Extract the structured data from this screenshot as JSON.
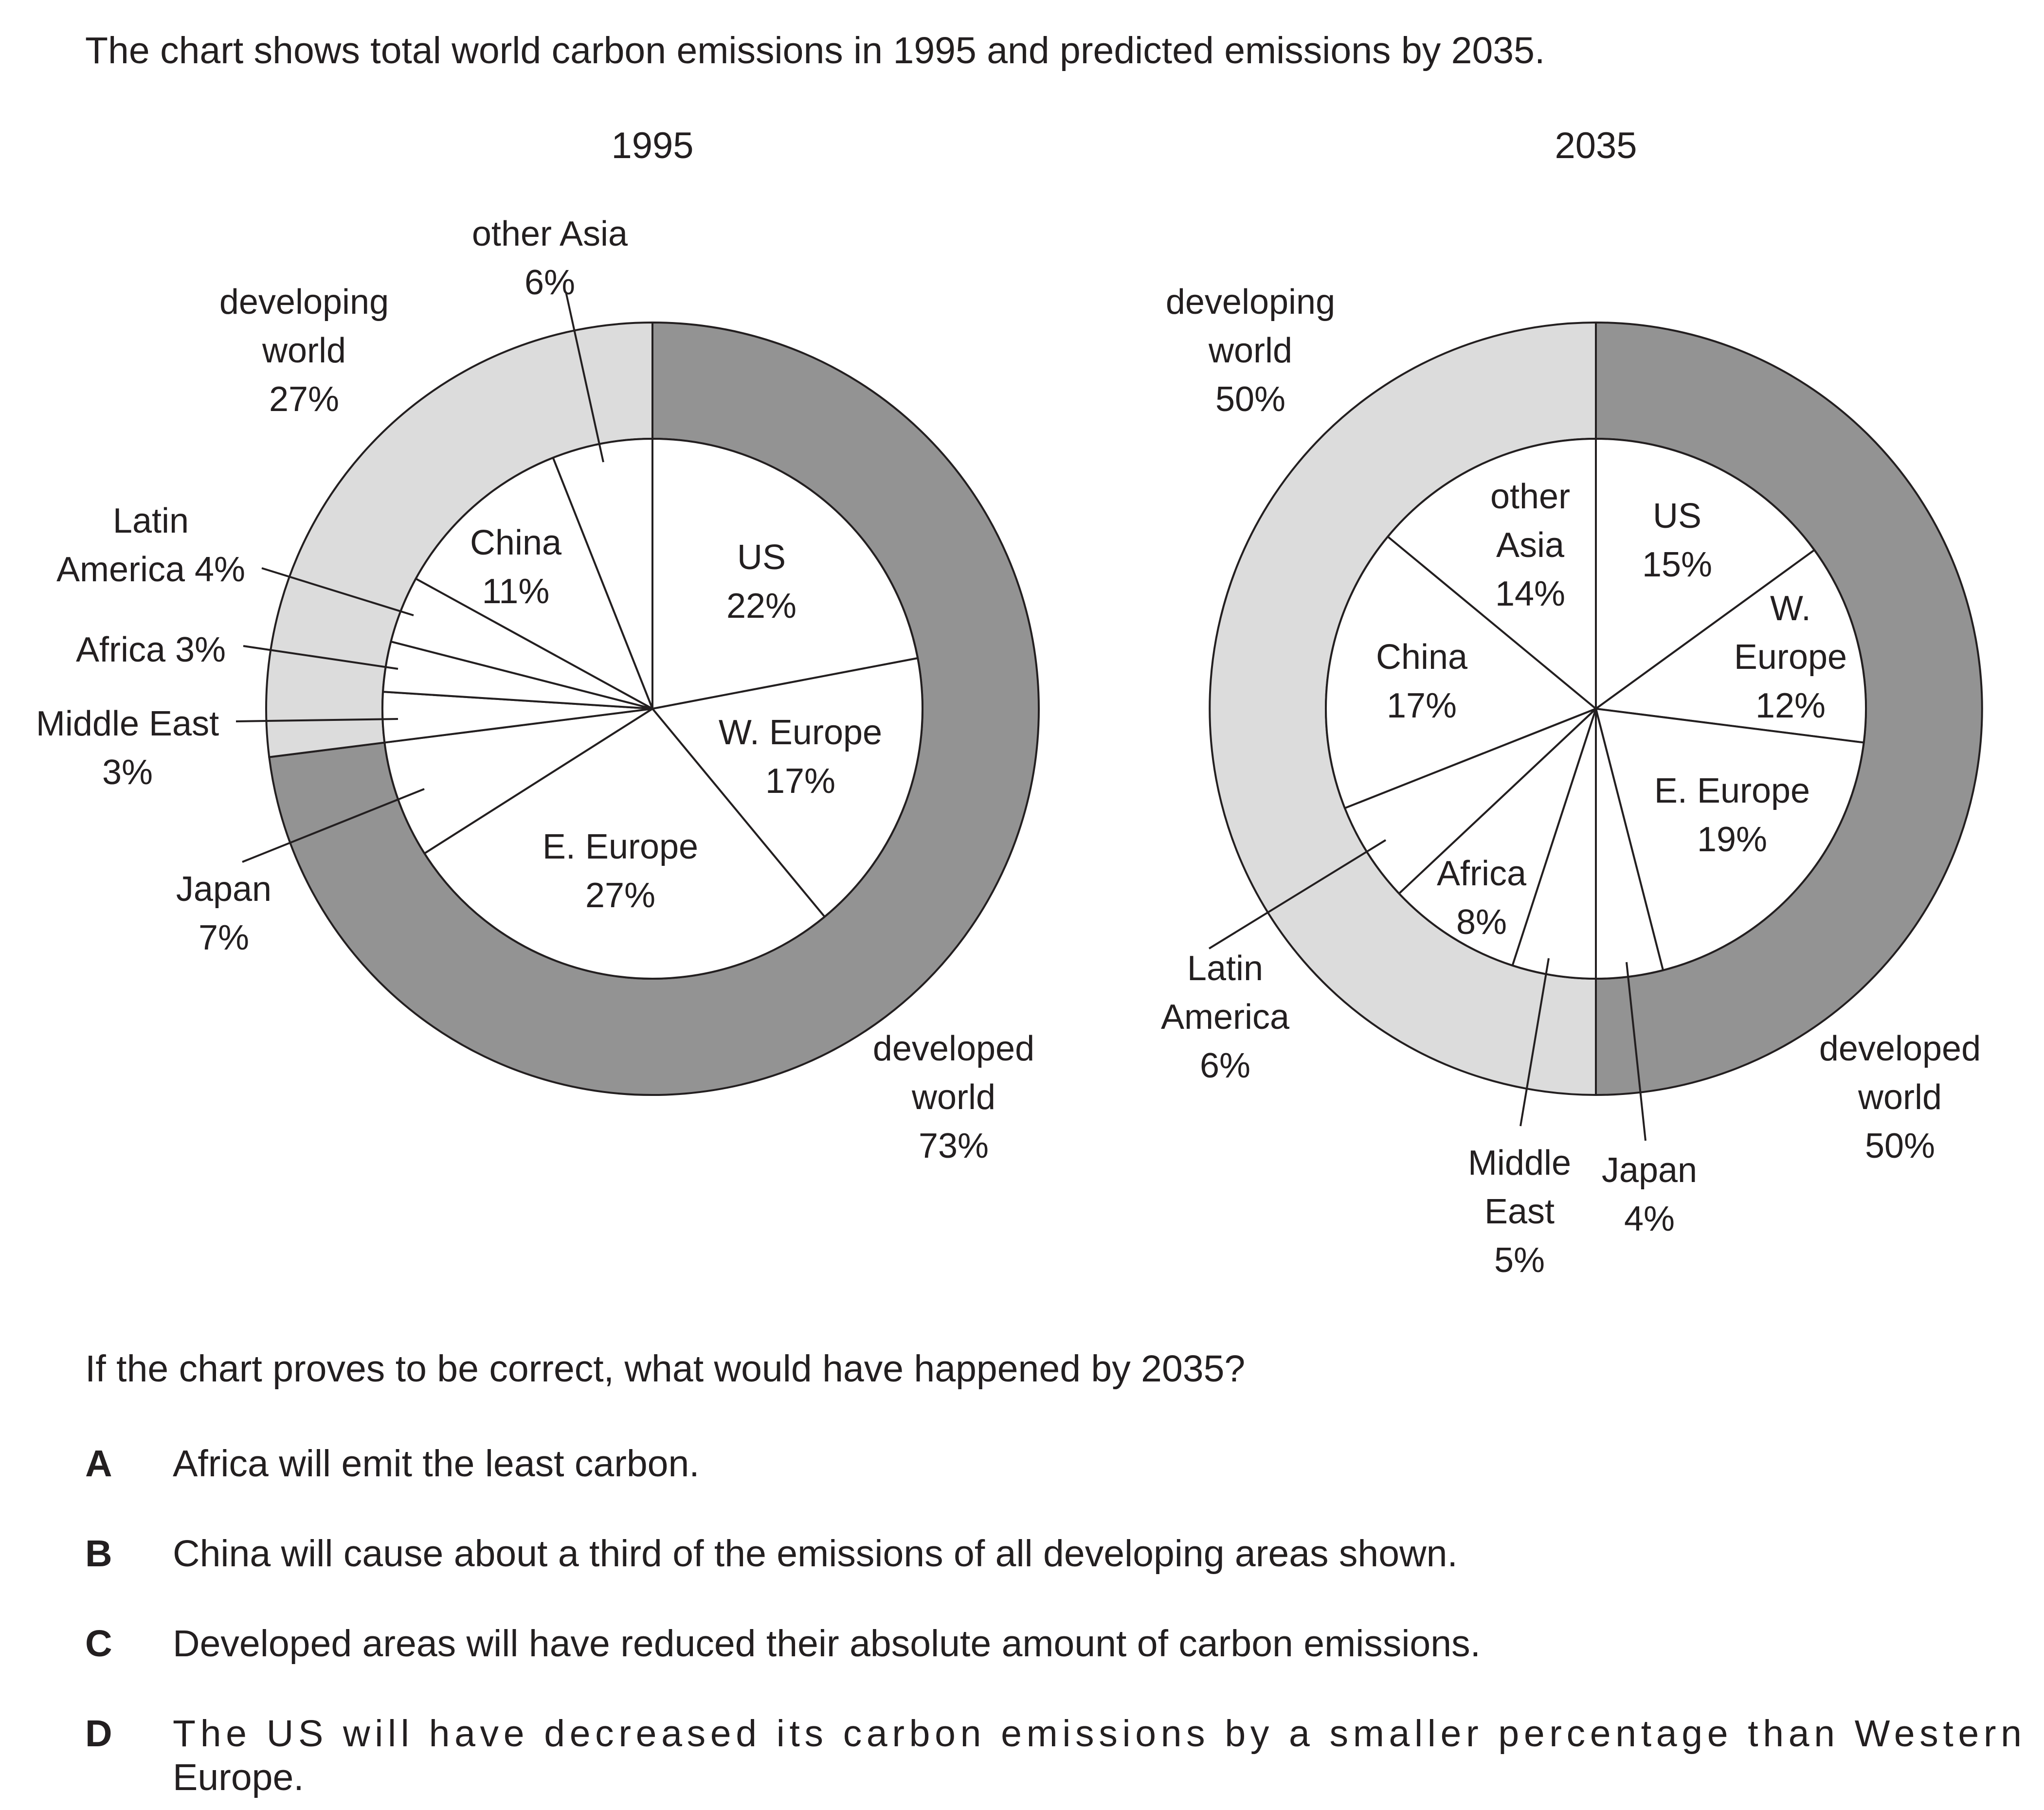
{
  "intro": "The chart shows total world carbon emissions in 1995 and predicted emissions by 2035.",
  "question": "If the chart proves to be correct, what would have happened by 2035?",
  "options": [
    {
      "letter": "A",
      "lines": [
        "Africa will emit the least carbon."
      ]
    },
    {
      "letter": "B",
      "lines": [
        "China will cause about a third of the emissions of all developing areas shown."
      ]
    },
    {
      "letter": "C",
      "lines": [
        "Developed areas will have reduced their absolute amount of carbon emissions."
      ]
    },
    {
      "letter": "D",
      "lines": [
        "The US will have decreased its carbon emissions by a smaller percentage than Western",
        "Europe."
      ]
    }
  ],
  "colors": {
    "developed": "#939393",
    "developing": "#dcdcdc",
    "inner": "#ffffff",
    "stroke": "#231f20"
  },
  "chart_data": [
    {
      "type": "pie",
      "title": "1995",
      "outer": [
        {
          "name": "developed world",
          "value": 73,
          "group": "developed",
          "label_lines": [
            "developed",
            "world",
            "73%"
          ]
        },
        {
          "name": "developing world",
          "value": 27,
          "group": "developing",
          "label_lines": [
            "developing",
            "world",
            "27%"
          ]
        }
      ],
      "inner": [
        {
          "name": "US",
          "value": 22,
          "label_lines": [
            "US",
            "22%"
          ]
        },
        {
          "name": "W. Europe",
          "value": 17,
          "label_lines": [
            "W. Europe",
            "17%"
          ]
        },
        {
          "name": "E. Europe",
          "value": 27,
          "label_lines": [
            "E. Europe",
            "27%"
          ]
        },
        {
          "name": "Japan",
          "value": 7,
          "label_lines": [
            "Japan",
            "7%"
          ]
        },
        {
          "name": "Middle East",
          "value": 3,
          "label_lines": [
            "Middle East",
            "3%"
          ]
        },
        {
          "name": "Africa",
          "value": 3,
          "label_lines": [
            "Africa 3%"
          ]
        },
        {
          "name": "Latin America",
          "value": 4,
          "label_lines": [
            "Latin",
            "America 4%"
          ]
        },
        {
          "name": "China",
          "value": 11,
          "label_lines": [
            "China",
            "11%"
          ]
        },
        {
          "name": "other Asia",
          "value": 6,
          "label_lines": [
            "other Asia",
            "6%"
          ]
        }
      ]
    },
    {
      "type": "pie",
      "title": "2035",
      "outer": [
        {
          "name": "developed world",
          "value": 50,
          "group": "developed",
          "label_lines": [
            "developed",
            "world",
            "50%"
          ]
        },
        {
          "name": "developing world",
          "value": 50,
          "group": "developing",
          "label_lines": [
            "developing",
            "world",
            "50%"
          ]
        }
      ],
      "inner": [
        {
          "name": "US",
          "value": 15,
          "label_lines": [
            "US",
            "15%"
          ]
        },
        {
          "name": "W. Europe",
          "value": 12,
          "label_lines": [
            "W.",
            "Europe",
            "12%"
          ]
        },
        {
          "name": "E. Europe",
          "value": 19,
          "label_lines": [
            "E. Europe",
            "19%"
          ]
        },
        {
          "name": "Japan",
          "value": 4,
          "label_lines": [
            "Japan",
            "4%"
          ]
        },
        {
          "name": "Middle East",
          "value": 5,
          "label_lines": [
            "Middle",
            "East",
            "5%"
          ]
        },
        {
          "name": "Africa",
          "value": 8,
          "label_lines": [
            "Africa",
            "8%"
          ]
        },
        {
          "name": "Latin America",
          "value": 6,
          "label_lines": [
            "Latin",
            "America",
            "6%"
          ]
        },
        {
          "name": "China",
          "value": 17,
          "label_lines": [
            "China",
            "17%"
          ]
        },
        {
          "name": "other Asia",
          "value": 14,
          "label_lines": [
            "other",
            "Asia",
            "14%"
          ]
        }
      ]
    }
  ]
}
